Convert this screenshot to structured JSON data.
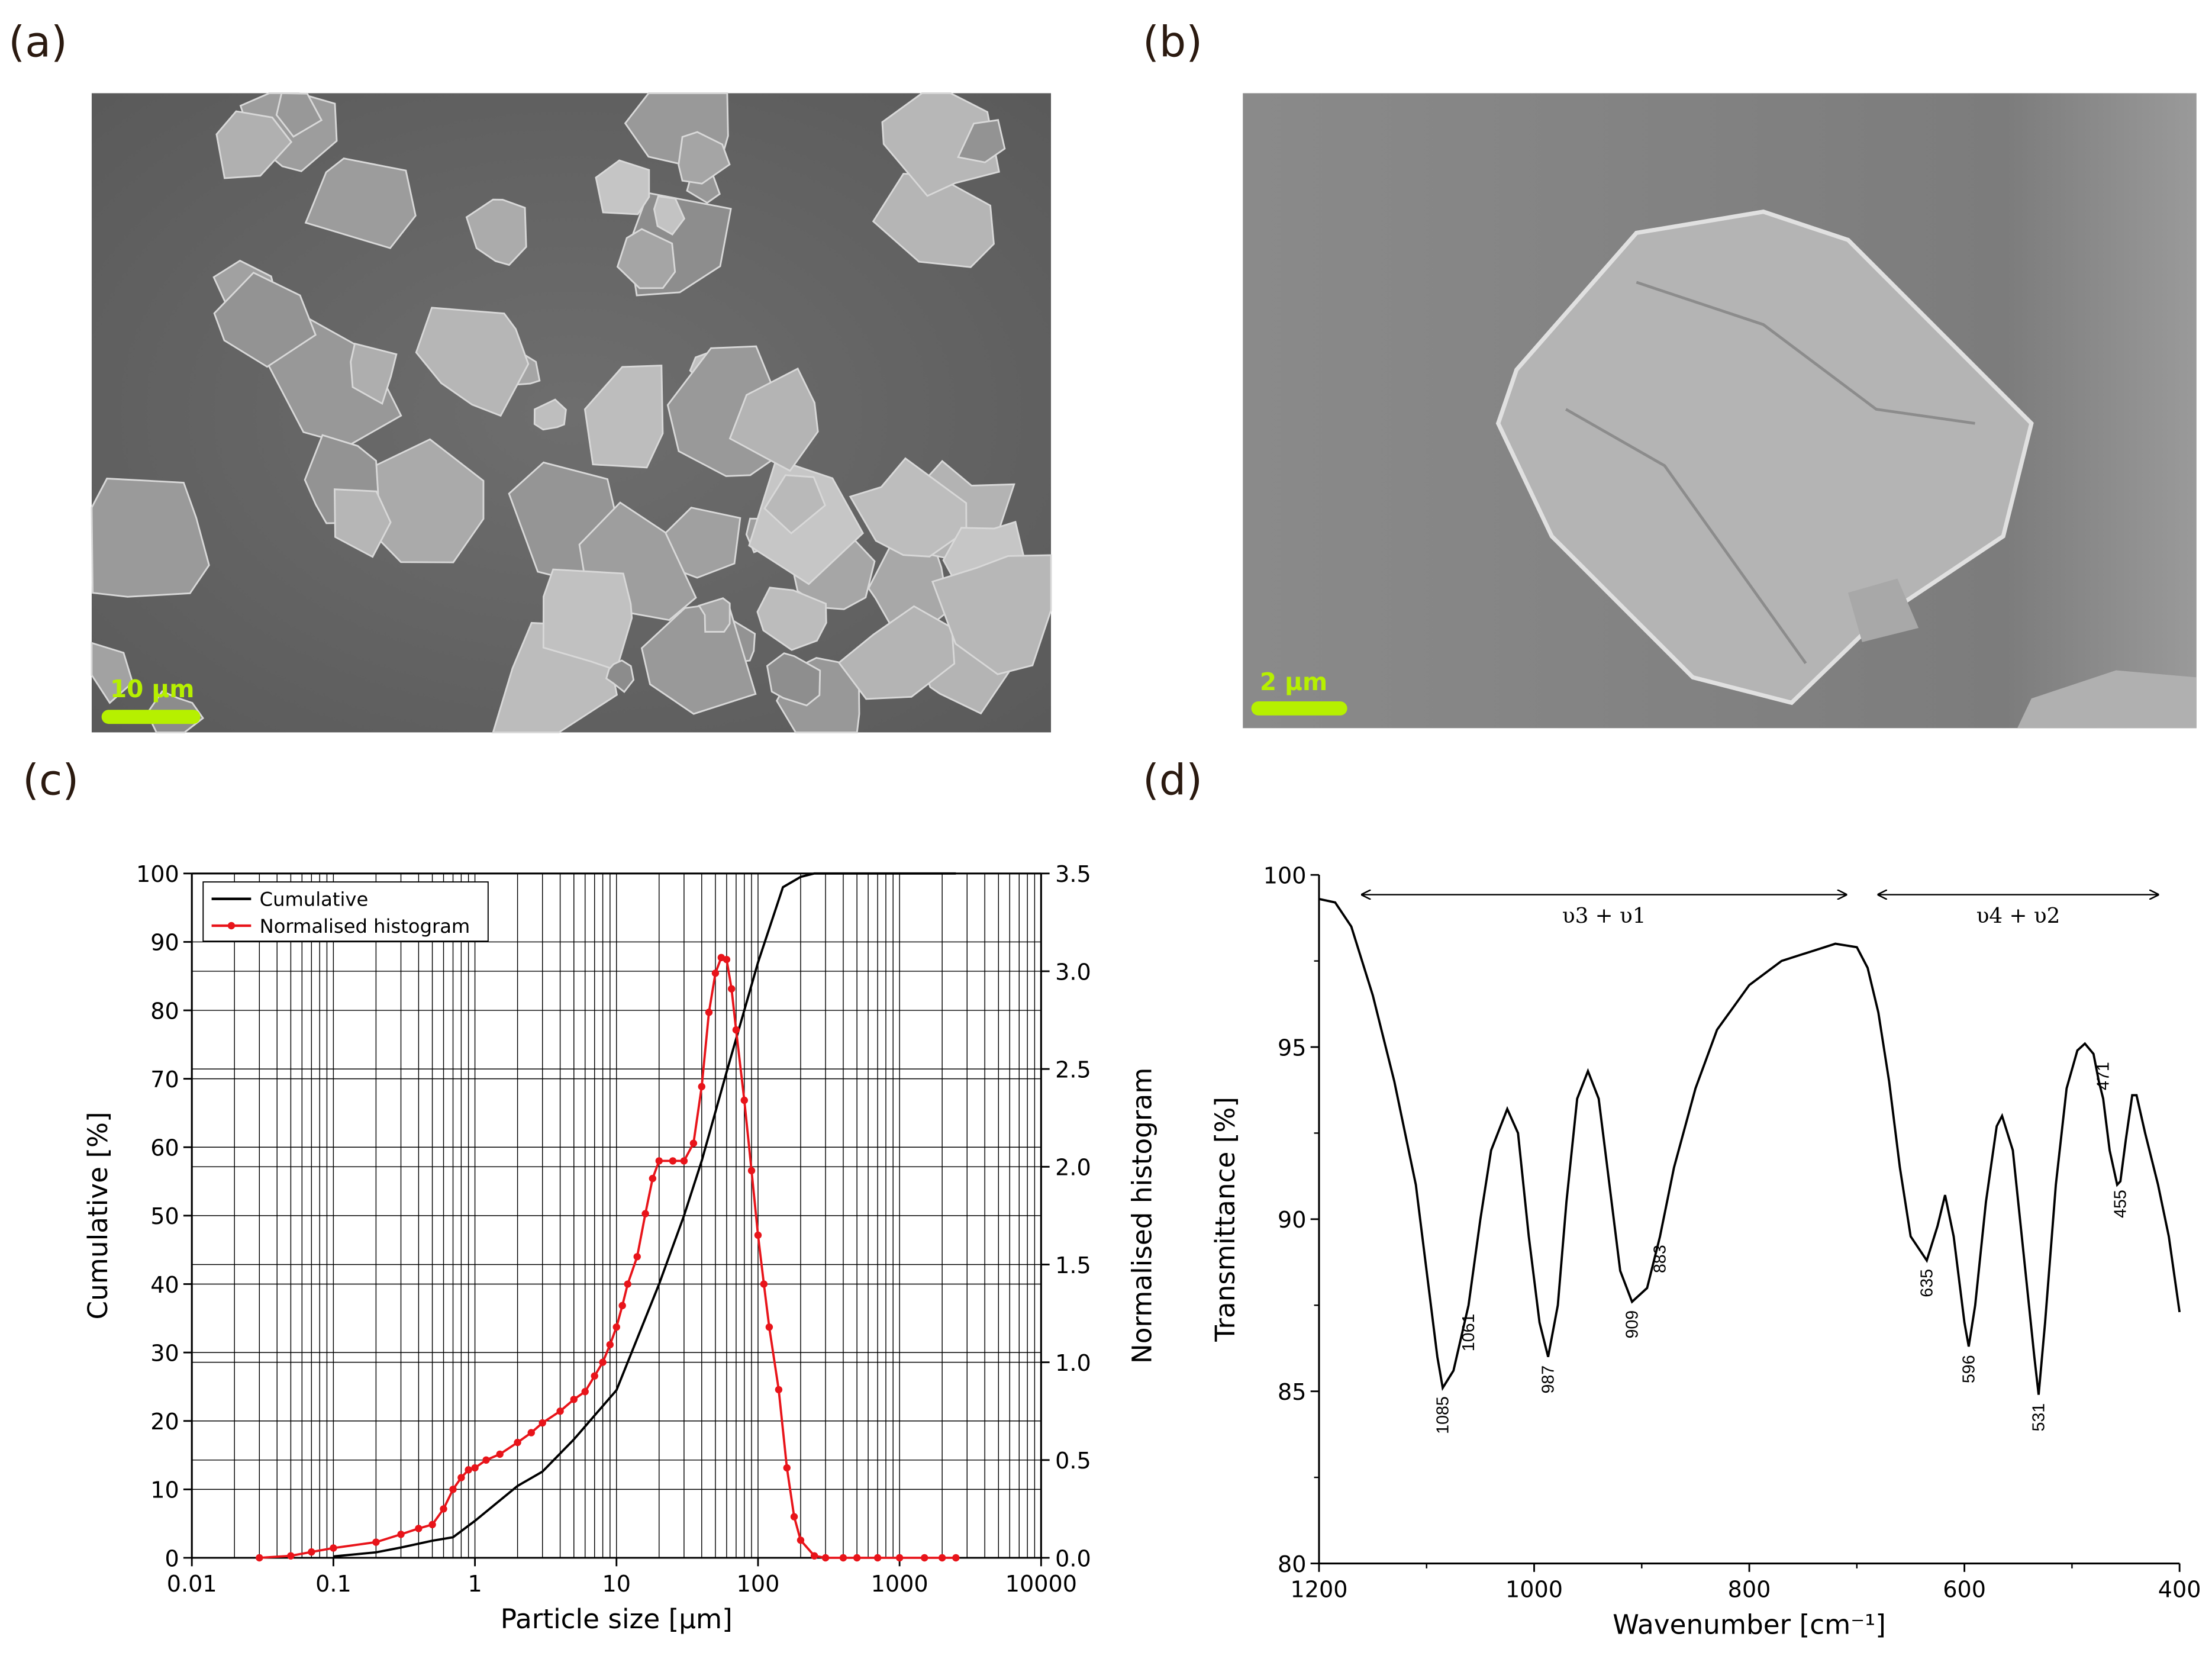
{
  "panels": [
    {
      "label": "(a)",
      "scale_bar": "10 µm"
    },
    {
      "label": "(b)",
      "scale_bar": "2 µm"
    },
    {
      "label": "(c)"
    },
    {
      "label": "(d)"
    }
  ],
  "chart_data": [
    {
      "type": "line",
      "x_label": "Particle size [µm]",
      "y_label": "Cumulative [%]",
      "y2_label": "Normalised histogram",
      "log_x": true,
      "grid": true,
      "legend": "upper left",
      "xlim": [
        0.01,
        10000
      ],
      "xticks": [
        0.01,
        0.1,
        1,
        10,
        100,
        1000,
        10000
      ],
      "ylim": [
        0,
        100
      ],
      "yticks": [
        0,
        10,
        20,
        30,
        40,
        50,
        60,
        70,
        80,
        90,
        100
      ],
      "y2lim": [
        0,
        3.5
      ],
      "y2ticks": [
        {
          "value": 0,
          "label": "0.0"
        },
        0.5,
        {
          "value": 1,
          "label": "1.0"
        },
        1.5,
        {
          "value": 2,
          "label": "2.0"
        },
        2.5,
        {
          "value": 3,
          "label": "3.0"
        },
        3.5
      ],
      "series": [
        {
          "name": "Cumulative",
          "color": "#000000",
          "x": [
            0.1,
            0.2,
            0.3,
            0.5,
            0.7,
            1,
            2,
            3,
            5,
            10,
            20,
            30,
            40,
            60,
            100,
            150,
            200,
            250,
            2500
          ],
          "values": [
            0.2,
            0.8,
            1.5,
            2.5,
            3.0,
            5.4,
            10.5,
            12.6,
            17.3,
            24.5,
            40,
            50,
            58,
            71,
            87,
            98,
            99.5,
            100,
            100
          ]
        },
        {
          "name": "Normalised histogram",
          "color": "#e8141a",
          "axis": "y2",
          "marker": "circle",
          "x": [
            0.03,
            0.05,
            0.07,
            0.1,
            0.2,
            0.3,
            0.4,
            0.5,
            0.6,
            0.7,
            0.8,
            0.9,
            1,
            1.2,
            1.5,
            2,
            2.5,
            3,
            4,
            5,
            6,
            7,
            8,
            9,
            10,
            11,
            12,
            14,
            16,
            18,
            20,
            25,
            30,
            35,
            40,
            45,
            50,
            55,
            60,
            65,
            70,
            80,
            90,
            100,
            110,
            120,
            140,
            160,
            180,
            200,
            250,
            300,
            400,
            500,
            700,
            1000,
            1500,
            2000,
            2500
          ],
          "values": [
            0,
            0.01,
            0.03,
            0.05,
            0.08,
            0.12,
            0.15,
            0.17,
            0.25,
            0.35,
            0.41,
            0.45,
            0.46,
            0.5,
            0.53,
            0.59,
            0.64,
            0.69,
            0.75,
            0.81,
            0.85,
            0.93,
            1.0,
            1.09,
            1.18,
            1.29,
            1.4,
            1.54,
            1.76,
            1.94,
            2.03,
            2.03,
            2.03,
            2.12,
            2.41,
            2.79,
            2.99,
            3.07,
            3.06,
            2.91,
            2.7,
            2.34,
            1.98,
            1.65,
            1.4,
            1.18,
            0.86,
            0.46,
            0.21,
            0.09,
            0.01,
            0,
            0,
            0,
            0,
            0,
            0,
            0,
            0
          ]
        }
      ]
    },
    {
      "type": "line",
      "x_label": "Wavenumber [cm⁻¹]",
      "y_label": "Transmittance [%]",
      "xlim": [
        1200,
        400
      ],
      "xticks": [
        1200,
        1000,
        800,
        600,
        400
      ],
      "ylim": [
        80,
        100
      ],
      "yticks": [
        80,
        85,
        90,
        95,
        100
      ],
      "series": [
        {
          "color": "#000000",
          "x": [
            1200,
            1185,
            1170,
            1150,
            1130,
            1110,
            1100,
            1090,
            1085,
            1075,
            1061,
            1050,
            1040,
            1025,
            1015,
            1005,
            995,
            987,
            978,
            970,
            960,
            950,
            940,
            930,
            920,
            909,
            895,
            883,
            870,
            850,
            830,
            800,
            770,
            740,
            720,
            700,
            690,
            680,
            670,
            660,
            650,
            635,
            625,
            618,
            610,
            600,
            596,
            590,
            580,
            570,
            565,
            555,
            545,
            535,
            531,
            525,
            515,
            505,
            495,
            488,
            480,
            475,
            471,
            465,
            458,
            455,
            450,
            444,
            440,
            432,
            420,
            410,
            400
          ],
          "values": [
            99.3,
            99.2,
            98.5,
            96.5,
            94,
            91,
            88.5,
            86,
            85.1,
            85.6,
            87.5,
            90,
            92,
            93.2,
            92.5,
            89.5,
            87,
            86,
            87.5,
            90.5,
            93.5,
            94.3,
            93.5,
            91,
            88.5,
            87.6,
            88,
            89.5,
            91.5,
            93.8,
            95.5,
            96.8,
            97.5,
            97.8,
            98,
            97.9,
            97.3,
            96,
            94,
            91.5,
            89.5,
            88.8,
            89.8,
            90.7,
            89.5,
            87,
            86.3,
            87.5,
            90.5,
            92.7,
            93,
            92,
            89,
            86,
            84.9,
            87,
            91,
            93.8,
            94.9,
            95.1,
            94.8,
            94,
            93.5,
            92,
            91,
            91.1,
            92.3,
            93.6,
            93.6,
            92.5,
            91,
            89.5,
            87.3
          ]
        }
      ],
      "annotations": [
        {
          "x": 1085,
          "label": "1085",
          "position": "below"
        },
        {
          "x": 1061,
          "label": "1061",
          "position": "below"
        },
        {
          "x": 987,
          "label": "987",
          "position": "below"
        },
        {
          "x": 909,
          "label": "909",
          "position": "below"
        },
        {
          "x": 883,
          "label": "883",
          "position": "below"
        },
        {
          "x": 635,
          "label": "635",
          "position": "below"
        },
        {
          "x": 596,
          "label": "596",
          "position": "below"
        },
        {
          "x": 531,
          "label": "531",
          "position": "below"
        },
        {
          "x": 471,
          "label": "471",
          "position": "above"
        },
        {
          "x": 455,
          "label": "455",
          "position": "below"
        }
      ],
      "ranges": [
        {
          "label": "υ3 + υ1",
          "from": 1160,
          "to": 710
        },
        {
          "label": "υ4 + υ2",
          "from": 680,
          "to": 420
        }
      ]
    }
  ]
}
